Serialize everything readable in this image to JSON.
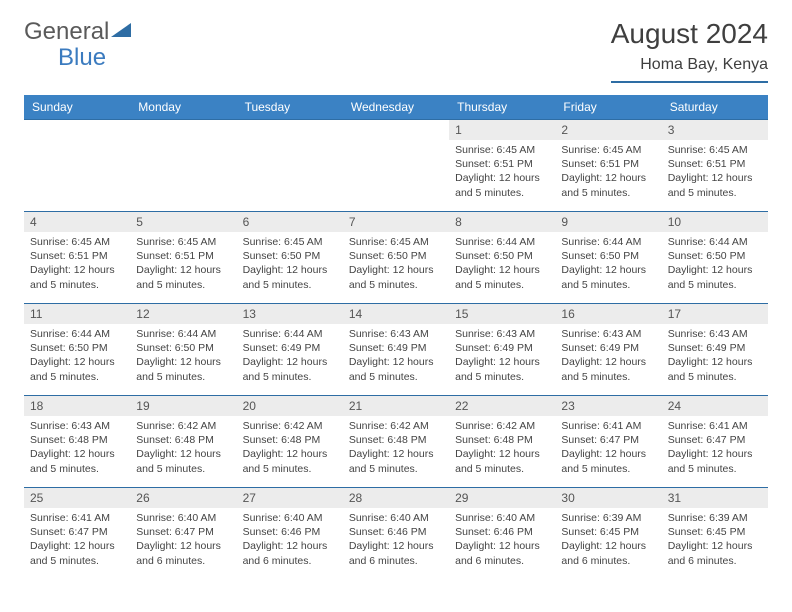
{
  "brand": {
    "part1": "General",
    "part2": "Blue"
  },
  "title": "August 2024",
  "location": "Homa Bay, Kenya",
  "colors": {
    "header_bg": "#3b82c4",
    "header_text": "#ffffff",
    "border": "#2e6da4",
    "daynum_bg": "#ececec",
    "text": "#444444",
    "logo_gray": "#5a5a5a",
    "logo_blue": "#3b7bbf"
  },
  "typography": {
    "title_fontsize": 28,
    "location_fontsize": 16,
    "th_fontsize": 12,
    "cell_fontsize": 10.5
  },
  "weekdays": [
    "Sunday",
    "Monday",
    "Tuesday",
    "Wednesday",
    "Thursday",
    "Friday",
    "Saturday"
  ],
  "weeks": [
    [
      null,
      null,
      null,
      null,
      {
        "n": "1",
        "sunrise": "6:45 AM",
        "sunset": "6:51 PM",
        "daylight": "12 hours and 5 minutes."
      },
      {
        "n": "2",
        "sunrise": "6:45 AM",
        "sunset": "6:51 PM",
        "daylight": "12 hours and 5 minutes."
      },
      {
        "n": "3",
        "sunrise": "6:45 AM",
        "sunset": "6:51 PM",
        "daylight": "12 hours and 5 minutes."
      }
    ],
    [
      {
        "n": "4",
        "sunrise": "6:45 AM",
        "sunset": "6:51 PM",
        "daylight": "12 hours and 5 minutes."
      },
      {
        "n": "5",
        "sunrise": "6:45 AM",
        "sunset": "6:51 PM",
        "daylight": "12 hours and 5 minutes."
      },
      {
        "n": "6",
        "sunrise": "6:45 AM",
        "sunset": "6:50 PM",
        "daylight": "12 hours and 5 minutes."
      },
      {
        "n": "7",
        "sunrise": "6:45 AM",
        "sunset": "6:50 PM",
        "daylight": "12 hours and 5 minutes."
      },
      {
        "n": "8",
        "sunrise": "6:44 AM",
        "sunset": "6:50 PM",
        "daylight": "12 hours and 5 minutes."
      },
      {
        "n": "9",
        "sunrise": "6:44 AM",
        "sunset": "6:50 PM",
        "daylight": "12 hours and 5 minutes."
      },
      {
        "n": "10",
        "sunrise": "6:44 AM",
        "sunset": "6:50 PM",
        "daylight": "12 hours and 5 minutes."
      }
    ],
    [
      {
        "n": "11",
        "sunrise": "6:44 AM",
        "sunset": "6:50 PM",
        "daylight": "12 hours and 5 minutes."
      },
      {
        "n": "12",
        "sunrise": "6:44 AM",
        "sunset": "6:50 PM",
        "daylight": "12 hours and 5 minutes."
      },
      {
        "n": "13",
        "sunrise": "6:44 AM",
        "sunset": "6:49 PM",
        "daylight": "12 hours and 5 minutes."
      },
      {
        "n": "14",
        "sunrise": "6:43 AM",
        "sunset": "6:49 PM",
        "daylight": "12 hours and 5 minutes."
      },
      {
        "n": "15",
        "sunrise": "6:43 AM",
        "sunset": "6:49 PM",
        "daylight": "12 hours and 5 minutes."
      },
      {
        "n": "16",
        "sunrise": "6:43 AM",
        "sunset": "6:49 PM",
        "daylight": "12 hours and 5 minutes."
      },
      {
        "n": "17",
        "sunrise": "6:43 AM",
        "sunset": "6:49 PM",
        "daylight": "12 hours and 5 minutes."
      }
    ],
    [
      {
        "n": "18",
        "sunrise": "6:43 AM",
        "sunset": "6:48 PM",
        "daylight": "12 hours and 5 minutes."
      },
      {
        "n": "19",
        "sunrise": "6:42 AM",
        "sunset": "6:48 PM",
        "daylight": "12 hours and 5 minutes."
      },
      {
        "n": "20",
        "sunrise": "6:42 AM",
        "sunset": "6:48 PM",
        "daylight": "12 hours and 5 minutes."
      },
      {
        "n": "21",
        "sunrise": "6:42 AM",
        "sunset": "6:48 PM",
        "daylight": "12 hours and 5 minutes."
      },
      {
        "n": "22",
        "sunrise": "6:42 AM",
        "sunset": "6:48 PM",
        "daylight": "12 hours and 5 minutes."
      },
      {
        "n": "23",
        "sunrise": "6:41 AM",
        "sunset": "6:47 PM",
        "daylight": "12 hours and 5 minutes."
      },
      {
        "n": "24",
        "sunrise": "6:41 AM",
        "sunset": "6:47 PM",
        "daylight": "12 hours and 5 minutes."
      }
    ],
    [
      {
        "n": "25",
        "sunrise": "6:41 AM",
        "sunset": "6:47 PM",
        "daylight": "12 hours and 5 minutes."
      },
      {
        "n": "26",
        "sunrise": "6:40 AM",
        "sunset": "6:47 PM",
        "daylight": "12 hours and 6 minutes."
      },
      {
        "n": "27",
        "sunrise": "6:40 AM",
        "sunset": "6:46 PM",
        "daylight": "12 hours and 6 minutes."
      },
      {
        "n": "28",
        "sunrise": "6:40 AM",
        "sunset": "6:46 PM",
        "daylight": "12 hours and 6 minutes."
      },
      {
        "n": "29",
        "sunrise": "6:40 AM",
        "sunset": "6:46 PM",
        "daylight": "12 hours and 6 minutes."
      },
      {
        "n": "30",
        "sunrise": "6:39 AM",
        "sunset": "6:45 PM",
        "daylight": "12 hours and 6 minutes."
      },
      {
        "n": "31",
        "sunrise": "6:39 AM",
        "sunset": "6:45 PM",
        "daylight": "12 hours and 6 minutes."
      }
    ]
  ],
  "labels": {
    "sunrise": "Sunrise:",
    "sunset": "Sunset:",
    "daylight": "Daylight:"
  }
}
